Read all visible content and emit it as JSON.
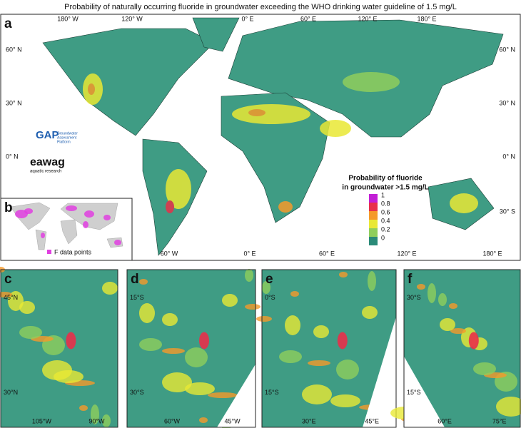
{
  "title": "Probability of naturally occurring fluoride in groundwater exceeding the WHO drinking water guideline of 1.5 mg/L",
  "panel_a": {
    "label": "a",
    "top_lon": [
      "180° W",
      "120° W",
      "0° E",
      "60° E",
      "120° E",
      "180° E"
    ],
    "bottom_lon": [
      "60° W",
      "0° E",
      "60° E",
      "120° E",
      "180° E"
    ],
    "left_lat": [
      "60° N",
      "30° N",
      "0° N"
    ],
    "right_lat": [
      "60° N",
      "30° N",
      "0° N",
      "30° S"
    ],
    "gap_logo": {
      "name": "GAP",
      "lines": [
        "Groundwater",
        "Assessment",
        "Platform"
      ]
    },
    "eawag_logo": {
      "name": "eawag",
      "tagline": "aquatic research"
    },
    "legend": {
      "title": [
        "Probability of fluoride",
        "in groundwater >1.5 mg/L"
      ],
      "items": [
        {
          "label": "1",
          "color": "#c21fd6"
        },
        {
          "label": "0.8",
          "color": "#e8304a"
        },
        {
          "label": "0.6",
          "color": "#f59a2a"
        },
        {
          "label": "0.4",
          "color": "#e9e835"
        },
        {
          "label": "0.2",
          "color": "#8fce5c"
        },
        {
          "label": "0",
          "color": "#2a8a78"
        }
      ]
    }
  },
  "panel_b": {
    "label": "b",
    "legend": "F data points",
    "color": "#e040e0"
  },
  "panels": [
    {
      "label": "c",
      "lat": [
        "45°N",
        "30°N"
      ],
      "lon": [
        "105°W",
        "90°W"
      ]
    },
    {
      "label": "d",
      "lat": [
        "15°S",
        "30°S"
      ],
      "lon": [
        "60°W",
        "45°W"
      ]
    },
    {
      "label": "e",
      "lat": [
        "0°S",
        "15°S"
      ],
      "lon": [
        "30°E",
        "45°E"
      ]
    },
    {
      "label": "f",
      "lat": [
        "30°S",
        "15°S"
      ],
      "lon": [
        "60°E",
        "75°E"
      ]
    }
  ]
}
